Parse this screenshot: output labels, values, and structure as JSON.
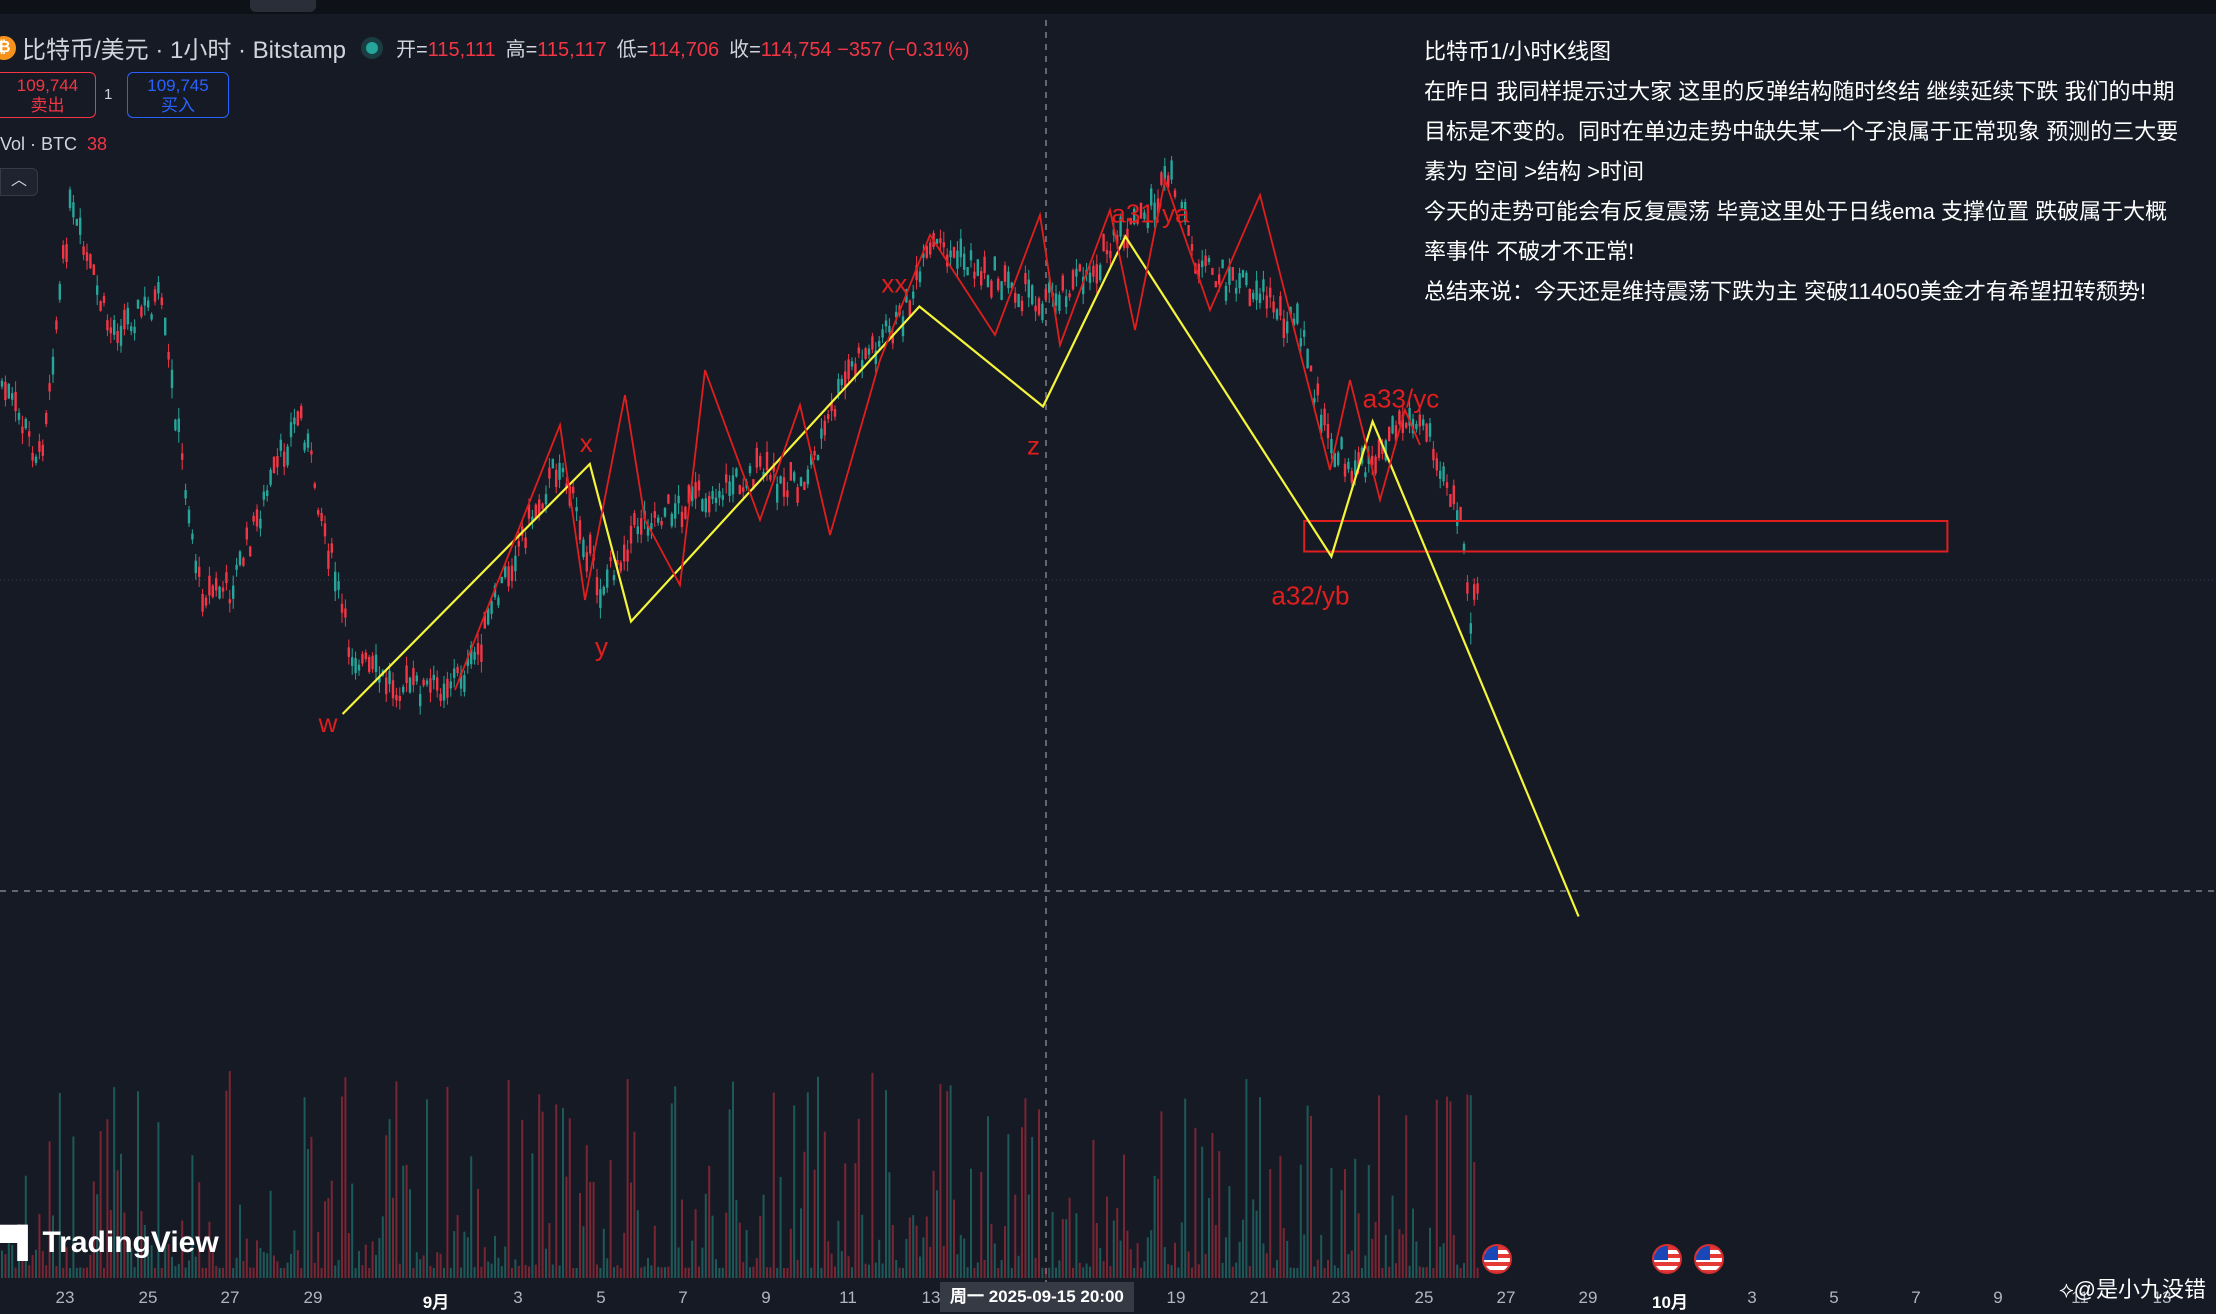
{
  "header": {
    "coin_icon": "bitcoin-icon",
    "title": "比特币/美元 · 1小时 · Bitstamp",
    "ohlc": [
      {
        "key": "开=",
        "value": "115,111"
      },
      {
        "key": "高=",
        "value": "115,117"
      },
      {
        "key": "低=",
        "value": "114,706"
      },
      {
        "key": "收=",
        "value": "114,754 −357 (−0.31%)"
      }
    ],
    "sell": {
      "price": "109,744",
      "label": "卖出"
    },
    "buy": {
      "price": "109,745",
      "label": "买入"
    },
    "spread": "1",
    "volume_label": "Vol · BTC",
    "volume_value": "38"
  },
  "annotation": {
    "lines": [
      "比特币1/小时K线图",
      "在昨日 我同样提示过大家 这里的反弹结构随时终结 继续延续下跌 我们的中期",
      "目标是不变的。同时在单边走势中缺失某一个子浪属于正常现象 预测的三大要",
      "素为 空间 >结构 >时间",
      "今天的走势可能会有反复震荡 毕竟这里处于日线ema 支撑位置 跌破属于大概",
      "率事件 不破才不正常!",
      "总结来说：今天还是维持震荡下跌为主 突破114050美金才有希望扭转颓势!"
    ]
  },
  "branding": {
    "logo": "TradingView",
    "watermark": "@是小九没错"
  },
  "crosshair_label": "周一 2025-09-15   20:00",
  "chart_data": {
    "type": "line",
    "title": "比特币/美元 · 1小时 · Bitstamp",
    "colors": {
      "up": "#26a69a",
      "down": "#f23645",
      "wave_path": "#f5f53a",
      "wave_labels": "#e01e1e",
      "zone": "#e01e1e"
    },
    "x_ticks": [
      "23",
      "25",
      "27",
      "29",
      "9月",
      "3",
      "5",
      "7",
      "9",
      "11",
      "13",
      "19",
      "21",
      "23",
      "25",
      "27",
      "29",
      "10月",
      "3",
      "5",
      "7",
      "9",
      "11",
      "13"
    ],
    "wave_labels": [
      "w",
      "x",
      "y",
      "xx",
      "z",
      "a31/ya",
      "a32/yb",
      "a33/yc"
    ],
    "wave_path": [
      {
        "label": "w",
        "date": "2025-08-30",
        "price": 108350
      },
      {
        "label": "x",
        "date": "2025-09-05",
        "price": 113350
      },
      {
        "label": "y",
        "date": "2025-09-06",
        "price": 110200
      },
      {
        "label": "xx",
        "date": "2025-09-13",
        "price": 116500
      },
      {
        "label": "z",
        "date": "2025-09-16",
        "price": 114500
      },
      {
        "label": "a31/ya",
        "date": "2025-09-18",
        "price": 117900
      },
      {
        "label": "a32/yb",
        "date": "2025-09-23",
        "price": 111500
      },
      {
        "label": "a33/yc",
        "date": "2025-09-24",
        "price": 114200
      },
      {
        "label": "",
        "date": "2025-09-29",
        "price": 104300
      }
    ],
    "resistance_zone": {
      "from": "2025-09-22",
      "to": "2025-10-08",
      "price_low": 111600,
      "price_high": 112050
    },
    "legend": "none",
    "grid": false
  }
}
